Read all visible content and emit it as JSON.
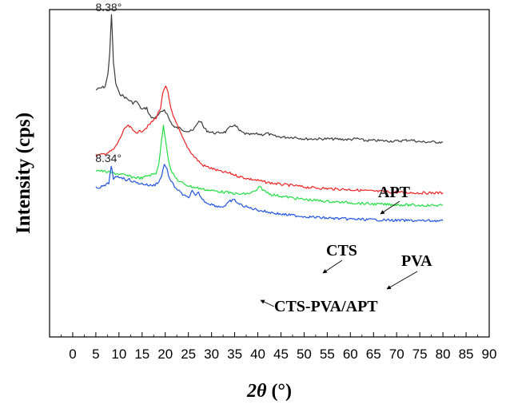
{
  "chart_data": {
    "type": "line",
    "xlabel_main": "2θ",
    "xlabel_unit": " (°)",
    "ylabel": "Intensity (cps)",
    "xlim": [
      -5,
      90
    ],
    "x_ticks": [
      0,
      5,
      10,
      15,
      20,
      25,
      30,
      35,
      40,
      45,
      50,
      55,
      60,
      65,
      70,
      75,
      80,
      85,
      90
    ],
    "y_ticks_labeled": false,
    "grid": false,
    "annotations": [
      {
        "text": "8.38°",
        "x": 8.38,
        "series": "APT"
      },
      {
        "text": "8.34°",
        "x": 8.34,
        "series": "CTS-PVA/APT"
      }
    ],
    "series": [
      {
        "name": "APT",
        "color": "#3a3a3a",
        "x": [
          5,
          6,
          7,
          7.6,
          8.0,
          8.38,
          8.8,
          9.3,
          10,
          11,
          12,
          13,
          13.8,
          14.4,
          15,
          16,
          16.5,
          17,
          18,
          19,
          19.8,
          20.4,
          21,
          22,
          23,
          24,
          25,
          26,
          27,
          27.6,
          28.3,
          29,
          30,
          31,
          32,
          33,
          34,
          34.8,
          35.5,
          36,
          37,
          38,
          40,
          41,
          42,
          43,
          44,
          46,
          48,
          50,
          55,
          60,
          61.5,
          63,
          65,
          70,
          73,
          75,
          80
        ],
        "y": [
          0.755,
          0.76,
          0.765,
          0.8,
          0.87,
          0.985,
          0.84,
          0.775,
          0.745,
          0.735,
          0.725,
          0.715,
          0.72,
          0.705,
          0.695,
          0.7,
          0.68,
          0.67,
          0.67,
          0.685,
          0.695,
          0.68,
          0.66,
          0.64,
          0.638,
          0.632,
          0.628,
          0.63,
          0.655,
          0.66,
          0.64,
          0.63,
          0.625,
          0.622,
          0.625,
          0.626,
          0.64,
          0.648,
          0.64,
          0.63,
          0.622,
          0.618,
          0.62,
          0.618,
          0.622,
          0.616,
          0.612,
          0.61,
          0.61,
          0.605,
          0.605,
          0.603,
          0.606,
          0.6,
          0.6,
          0.598,
          0.602,
          0.596,
          0.595
        ]
      },
      {
        "name": "CTS",
        "color": "#ee2222",
        "x": [
          5,
          6,
          7,
          8,
          9,
          10,
          11,
          11.8,
          12.5,
          13,
          14,
          15,
          16,
          17,
          18,
          19,
          19.5,
          20.1,
          20.6,
          21.2,
          22,
          23,
          24,
          25,
          26,
          27,
          28,
          30,
          32,
          34,
          36,
          38,
          40,
          42,
          45,
          48,
          50,
          55,
          60,
          65,
          70,
          75,
          80
        ],
        "y": [
          0.555,
          0.556,
          0.56,
          0.565,
          0.575,
          0.6,
          0.63,
          0.645,
          0.64,
          0.63,
          0.625,
          0.63,
          0.64,
          0.655,
          0.67,
          0.7,
          0.745,
          0.765,
          0.745,
          0.7,
          0.665,
          0.632,
          0.6,
          0.575,
          0.555,
          0.54,
          0.525,
          0.515,
          0.505,
          0.5,
          0.49,
          0.483,
          0.478,
          0.472,
          0.466,
          0.462,
          0.458,
          0.453,
          0.45,
          0.445,
          0.442,
          0.44,
          0.44
        ]
      },
      {
        "name": "PVA",
        "color": "#22dd44",
        "x": [
          5,
          7,
          9,
          11,
          13,
          15,
          16,
          17,
          18,
          18.6,
          19.2,
          19.6,
          20,
          20.6,
          21.2,
          22,
          23,
          24,
          25,
          26,
          27,
          28,
          30,
          32,
          34,
          36,
          38,
          39.5,
          40.5,
          41.5,
          43,
          45,
          50,
          55,
          60,
          65,
          70,
          75,
          80
        ],
        "y": [
          0.51,
          0.505,
          0.5,
          0.495,
          0.488,
          0.485,
          0.492,
          0.495,
          0.5,
          0.53,
          0.6,
          0.645,
          0.61,
          0.55,
          0.51,
          0.49,
          0.475,
          0.468,
          0.462,
          0.458,
          0.455,
          0.452,
          0.447,
          0.444,
          0.44,
          0.436,
          0.438,
          0.445,
          0.458,
          0.445,
          0.435,
          0.43,
          0.42,
          0.414,
          0.41,
          0.406,
          0.404,
          0.402,
          0.402
        ]
      },
      {
        "name": "CTS-PVA/APT",
        "color": "#2255dd",
        "x": [
          5,
          6,
          7,
          7.8,
          8.34,
          8.8,
          9.5,
          10.5,
          11.5,
          12,
          13,
          14,
          15,
          16,
          17,
          17.8,
          18.6,
          19.2,
          19.8,
          20.4,
          21,
          22,
          23,
          24,
          25,
          25.8,
          26.5,
          27.2,
          28,
          29,
          30,
          31,
          32,
          33,
          34,
          35,
          36,
          38,
          40,
          42,
          45,
          50,
          55,
          60,
          65,
          70,
          75,
          80
        ],
        "y": [
          0.455,
          0.458,
          0.462,
          0.47,
          0.525,
          0.48,
          0.49,
          0.488,
          0.48,
          0.482,
          0.475,
          0.47,
          0.468,
          0.465,
          0.462,
          0.465,
          0.475,
          0.49,
          0.53,
          0.51,
          0.48,
          0.46,
          0.445,
          0.432,
          0.425,
          0.445,
          0.43,
          0.44,
          0.42,
          0.41,
          0.405,
          0.4,
          0.398,
          0.4,
          0.415,
          0.418,
          0.405,
          0.395,
          0.388,
          0.382,
          0.375,
          0.368,
          0.363,
          0.36,
          0.358,
          0.356,
          0.355,
          0.355
        ]
      }
    ]
  }
}
